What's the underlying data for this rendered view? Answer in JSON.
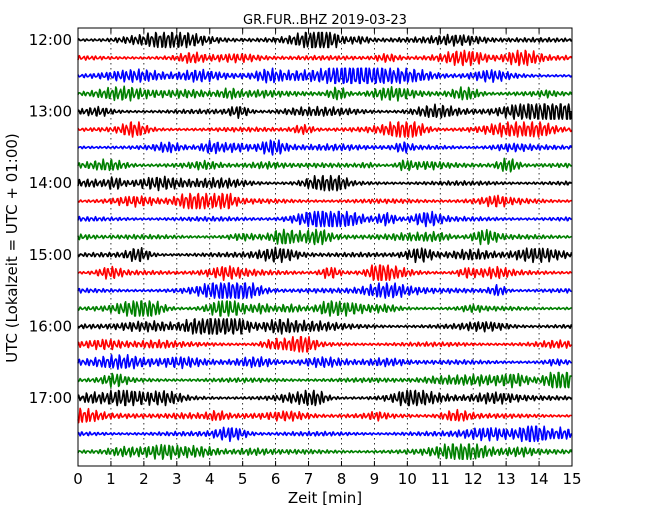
{
  "chart_data": {
    "type": "line",
    "title": "GR.FUR..BHZ 2019-03-23",
    "xlabel": "Zeit  [min]",
    "ylabel": "UTC (Lokalzeit = UTC + 01:00)",
    "xlim": [
      0,
      15
    ],
    "x_ticks": [
      "0",
      "1",
      "2",
      "3",
      "4",
      "5",
      "6",
      "7",
      "8",
      "9",
      "10",
      "11",
      "12",
      "13",
      "14",
      "15"
    ],
    "y_ticks": [
      "12:00",
      "13:00",
      "14:00",
      "15:00",
      "16:00",
      "17:00"
    ],
    "trace_minutes": 15,
    "trace_count": 24,
    "first_trace": "12:00",
    "grid": true,
    "colors": [
      "#000000",
      "#ff0000",
      "#0000ff",
      "#008000"
    ]
  }
}
